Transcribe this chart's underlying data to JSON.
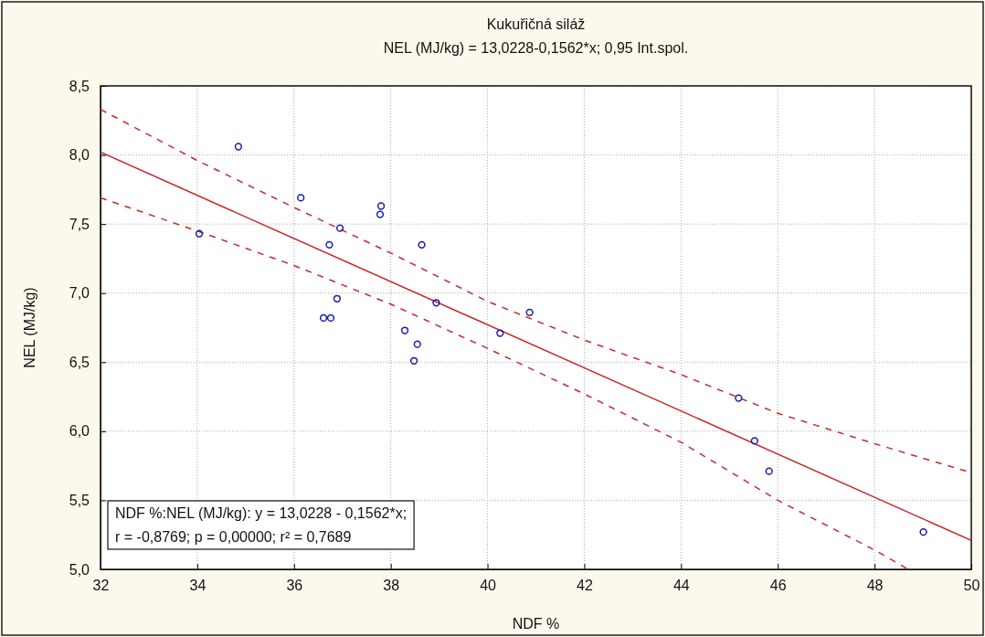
{
  "chart_data": {
    "type": "scatter",
    "title": "Kukuřičná siláž",
    "subtitle": "NEL (MJ/kg) = 13,0228-0,1562*x; 0,95 Int.spol.",
    "xlabel": "NDF %",
    "ylabel": "NEL (MJ/kg)",
    "xlim": [
      32,
      50
    ],
    "xticks": [
      32,
      34,
      36,
      38,
      40,
      42,
      44,
      46,
      48,
      50
    ],
    "ylim": [
      5,
      8.5
    ],
    "yticks": [
      {
        "value": 5,
        "label": "5,0"
      },
      {
        "value": 5.5,
        "label": "5,5"
      },
      {
        "value": 6,
        "label": "6,0"
      },
      {
        "value": 6.5,
        "label": "6,5"
      },
      {
        "value": 7,
        "label": "7,0"
      },
      {
        "value": 7.5,
        "label": "7,5"
      },
      {
        "value": 8,
        "label": "8,0"
      },
      {
        "value": 8.5,
        "label": "8,5"
      }
    ],
    "grid": true,
    "series": [
      {
        "marker": "circle",
        "color": "#1c1ca8",
        "x": [
          34.04,
          34.85,
          36.14,
          36.73,
          36.95,
          36.61,
          36.76,
          36.89,
          37.8,
          37.78,
          38.64,
          38.29,
          38.55,
          38.48,
          38.94,
          40.26,
          40.87,
          45.19,
          45.52,
          45.82,
          49.01
        ],
        "values": [
          7.43,
          8.06,
          7.69,
          7.35,
          7.47,
          6.82,
          6.82,
          6.96,
          7.63,
          7.57,
          7.35,
          6.73,
          6.63,
          6.51,
          6.93,
          6.71,
          6.86,
          6.24,
          5.93,
          5.71,
          5.27
        ]
      },
      {
        "type": "line",
        "color": "#c82828",
        "line_style": "solid",
        "x": [
          32,
          50
        ],
        "values": [
          8.02,
          5.21
        ]
      },
      {
        "type": "line",
        "color": "#c82828",
        "line_style": "dashed",
        "x": [
          32,
          34,
          36,
          38,
          40,
          42,
          44,
          46,
          48,
          50
        ],
        "values": [
          8.33,
          7.96,
          7.62,
          7.29,
          6.94,
          6.66,
          6.41,
          6.13,
          5.91,
          5.7
        ]
      },
      {
        "type": "line",
        "color": "#c82828",
        "line_style": "dashed",
        "x": [
          32,
          34,
          36,
          38,
          40,
          42,
          44,
          46,
          48,
          48.7
        ],
        "values": [
          7.69,
          7.45,
          7.2,
          6.92,
          6.6,
          6.27,
          5.92,
          5.5,
          5.14,
          5.0
        ]
      }
    ],
    "annotations": [
      "NDF %:NEL (MJ/kg):   y = 13,0228 - 0,1562*x;",
      "r = -0,8769; p = 0,00000; r² = 0,7689"
    ]
  }
}
